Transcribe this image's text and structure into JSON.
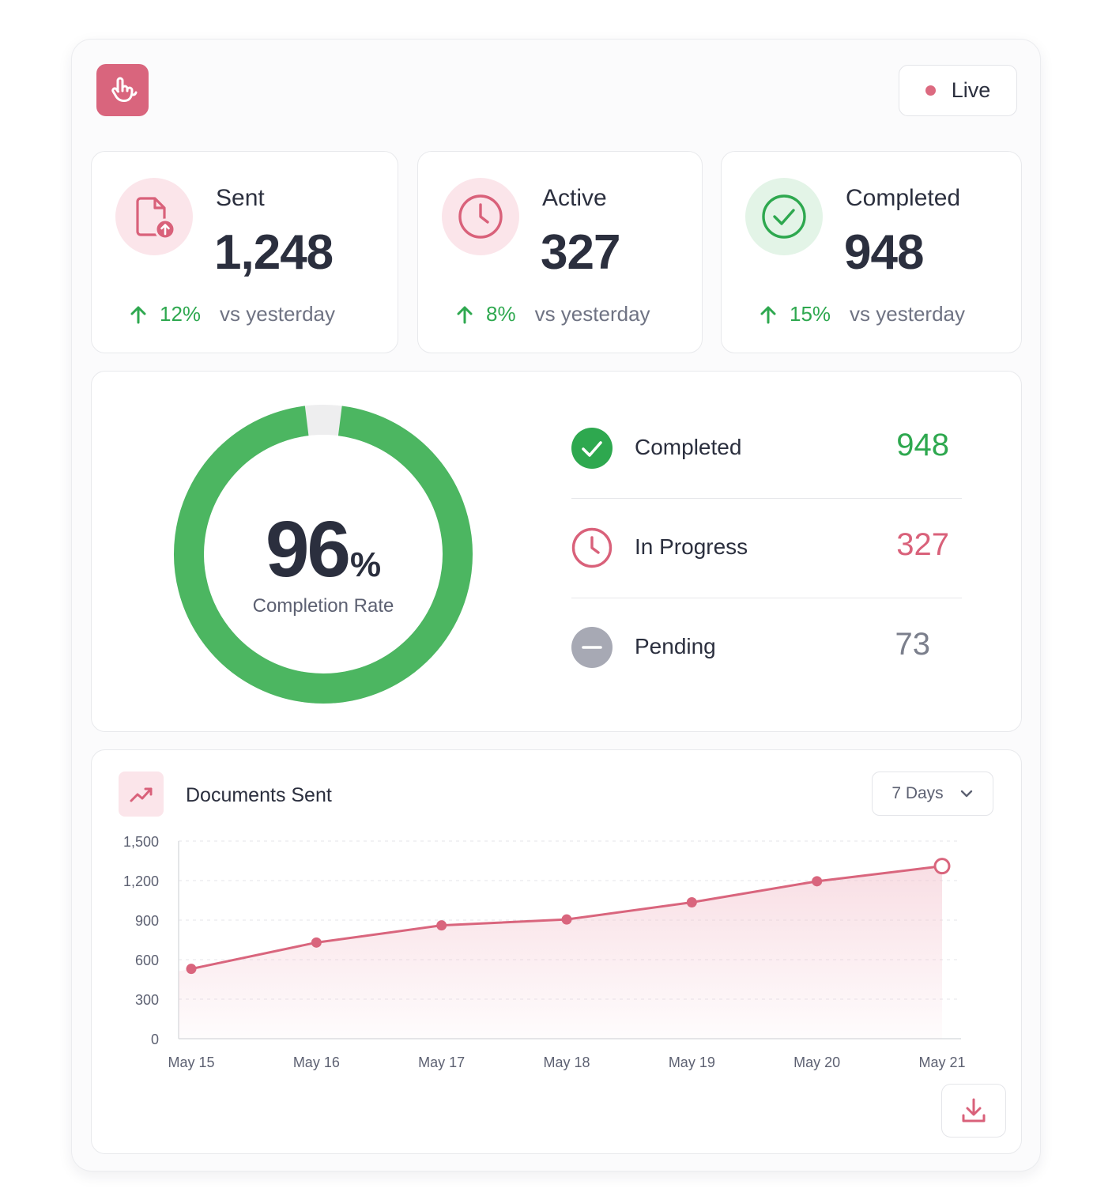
{
  "header": {
    "logo_icon": "hand-pointer-icon",
    "live_label": "Live"
  },
  "stats": [
    {
      "icon": "file-upload-icon",
      "title": "Sent",
      "value": "1,248",
      "delta": "12%",
      "comparison": "vs yesterday"
    },
    {
      "icon": "clock-icon",
      "title": "Active",
      "value": "327",
      "delta": "8%",
      "comparison": "vs yesterday"
    },
    {
      "icon": "check-circle-icon",
      "title": "Completed",
      "value": "948",
      "delta": "15%",
      "comparison": "vs yesterday"
    }
  ],
  "completion": {
    "rate_value": "96",
    "rate_unit": "%",
    "rate_fraction": 0.96,
    "rate_label": "Completion Rate",
    "breakdown": [
      {
        "icon": "check-circle-icon",
        "label": "Completed",
        "value": "948",
        "color": "#2ea84f"
      },
      {
        "icon": "clock-icon",
        "label": "In Progress",
        "value": "327",
        "color": "#d9617a"
      },
      {
        "icon": "minus-circle-icon",
        "label": "Pending",
        "value": "73",
        "color": "#7b7f8c"
      }
    ]
  },
  "chart_section": {
    "icon": "trend-chart-icon",
    "title": "Documents Sent",
    "range_selected": "7 Days",
    "download_icon": "download-icon"
  },
  "colors": {
    "accent": "#d9657d",
    "success": "#2ea84f",
    "ring": "#4cb661",
    "muted": "#a7a9b4"
  },
  "chart_data": {
    "type": "area",
    "title": "",
    "xlabel": "",
    "ylabel": "",
    "categories": [
      "May 15",
      "May 16",
      "May 17",
      "May 18",
      "May 19",
      "May 20",
      "May 21"
    ],
    "series": [
      {
        "values": [
          530,
          730,
          860,
          905,
          1035,
          1195,
          1310
        ]
      }
    ],
    "yticks": [
      "0",
      "300",
      "600",
      "900",
      "1,200",
      "1,500"
    ],
    "ylim": [
      0,
      1500
    ],
    "grid": true,
    "legend": "none"
  }
}
